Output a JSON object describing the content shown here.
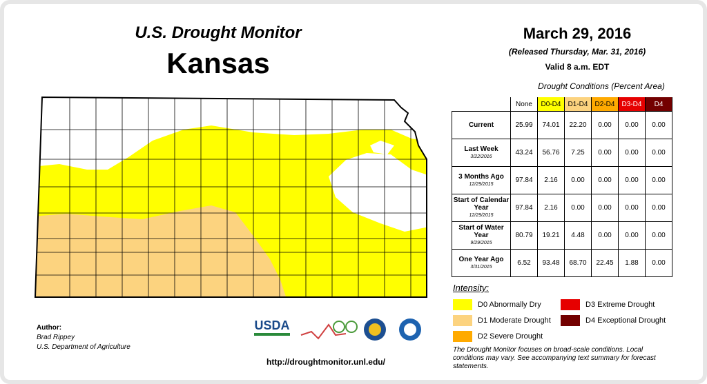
{
  "header": {
    "title": "U.S. Drought Monitor",
    "state": "Kansas",
    "date": "March 29, 2016",
    "released": "(Released Thursday, Mar. 31, 2016)",
    "valid": "Valid 8 a.m. EDT"
  },
  "table": {
    "caption": "Drought Conditions (Percent Area)",
    "columns": [
      {
        "label": "None",
        "color": "#ffffff",
        "text": "#000000"
      },
      {
        "label": "D0-D4",
        "color": "#ffff00",
        "text": "#000000"
      },
      {
        "label": "D1-D4",
        "color": "#fcd37f",
        "text": "#000000"
      },
      {
        "label": "D2-D4",
        "color": "#ffaa00",
        "text": "#000000"
      },
      {
        "label": "D3-D4",
        "color": "#e60000",
        "text": "#ffffff"
      },
      {
        "label": "D4",
        "color": "#730000",
        "text": "#ffffff"
      }
    ],
    "rows": [
      {
        "label": "Current",
        "values": [
          "25.99",
          "74.01",
          "22.20",
          "0.00",
          "0.00",
          "0.00"
        ]
      },
      {
        "label": "Last Week",
        "date": "3/22/2016",
        "values": [
          "43.24",
          "56.76",
          "7.25",
          "0.00",
          "0.00",
          "0.00"
        ]
      },
      {
        "label": "3 Months Ago",
        "date": "12/29/2015",
        "values": [
          "97.84",
          "2.16",
          "0.00",
          "0.00",
          "0.00",
          "0.00"
        ]
      },
      {
        "label": "Start of Calendar Year",
        "date": "12/29/2015",
        "values": [
          "97.84",
          "2.16",
          "0.00",
          "0.00",
          "0.00",
          "0.00"
        ]
      },
      {
        "label": "Start of Water Year",
        "date": "9/29/2015",
        "values": [
          "80.79",
          "19.21",
          "4.48",
          "0.00",
          "0.00",
          "0.00"
        ]
      },
      {
        "label": "One Year Ago",
        "date": "3/31/2015",
        "values": [
          "6.52",
          "93.48",
          "68.70",
          "22.45",
          "1.88",
          "0.00"
        ]
      }
    ]
  },
  "legend": {
    "title": "Intensity:",
    "items": [
      {
        "label": "D0 Abnormally Dry",
        "color": "#ffff00"
      },
      {
        "label": "D1 Moderate Drought",
        "color": "#fcd37f"
      },
      {
        "label": "D2 Severe Drought",
        "color": "#ffaa00"
      },
      {
        "label": "D3 Extreme Drought",
        "color": "#e60000"
      },
      {
        "label": "D4 Exceptional Drought",
        "color": "#730000"
      }
    ],
    "note": "The Drought Monitor focuses on broad-scale conditions. Local conditions may vary. See accompanying text summary for forecast statements."
  },
  "author": {
    "heading": "Author:",
    "name": "Brad Rippey",
    "org": "U.S. Department of Agriculture"
  },
  "logos": {
    "usda": "USDA"
  },
  "url": "http://droughtmonitor.unl.edu/"
}
